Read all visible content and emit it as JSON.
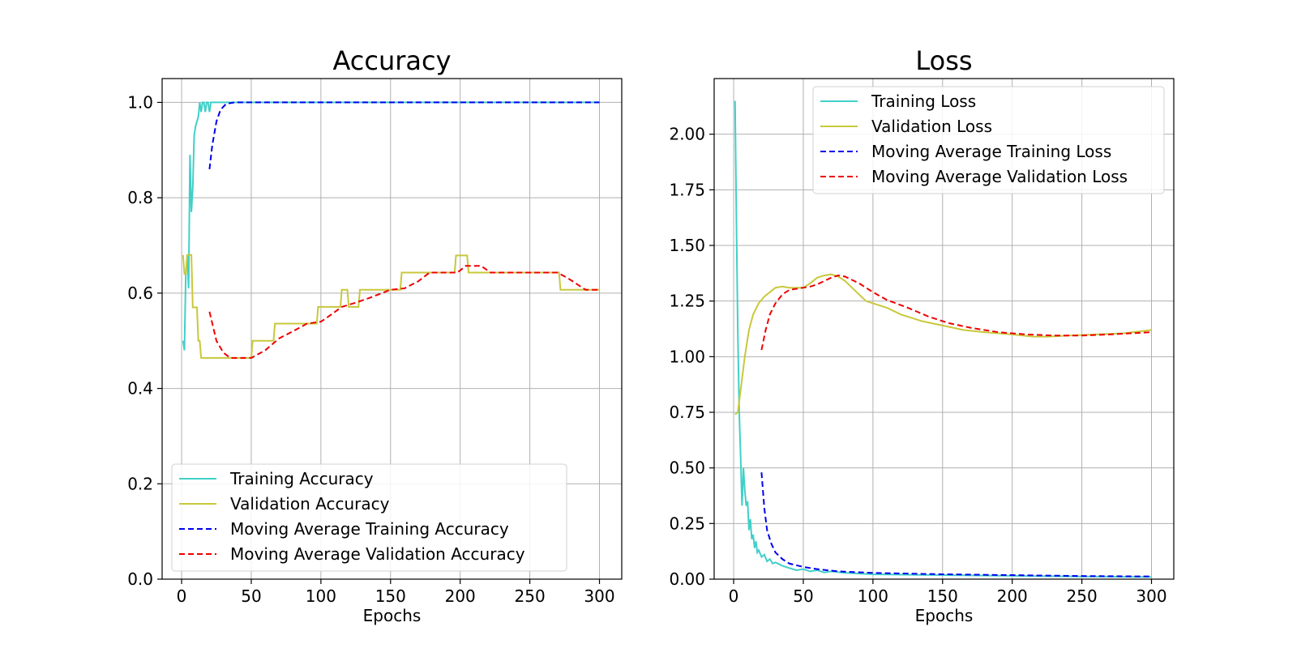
{
  "chart_data": [
    {
      "type": "line",
      "title": "Accuracy",
      "xlabel": "Epochs",
      "ylabel": "",
      "xlim": [
        -14,
        316
      ],
      "ylim": [
        0.0,
        1.05
      ],
      "xticks": [
        "0",
        "50",
        "100",
        "150",
        "200",
        "250",
        "300"
      ],
      "yticks": [
        "0.0",
        "0.2",
        "0.4",
        "0.6",
        "0.8",
        "1.0"
      ],
      "grid": true,
      "legend_position": "lower-left",
      "series": [
        {
          "name": "Training Accuracy",
          "color": "#40d0c8",
          "style": "solid",
          "points": [
            [
              1,
              0.5
            ],
            [
              2,
              0.48
            ],
            [
              3,
              0.64
            ],
            [
              4,
              0.68
            ],
            [
              5,
              0.61
            ],
            [
              6,
              0.89
            ],
            [
              7,
              0.77
            ],
            [
              8,
              0.82
            ],
            [
              9,
              0.93
            ],
            [
              10,
              0.95
            ],
            [
              12,
              0.97
            ],
            [
              13,
              1.0
            ],
            [
              14,
              0.98
            ],
            [
              15,
              1.0
            ],
            [
              16,
              1.0
            ],
            [
              17,
              0.98
            ],
            [
              18,
              1.0
            ],
            [
              19,
              1.0
            ],
            [
              20,
              0.98
            ],
            [
              21,
              1.0
            ],
            [
              300,
              1.0
            ]
          ]
        },
        {
          "name": "Validation Accuracy",
          "color": "#c8c83c",
          "style": "solid",
          "points": [
            [
              1,
              0.68
            ],
            [
              2,
              0.64
            ],
            [
              3,
              0.64
            ],
            [
              4,
              0.68
            ],
            [
              7,
              0.68
            ],
            [
              8,
              0.57
            ],
            [
              11,
              0.57
            ],
            [
              12,
              0.5
            ],
            [
              13,
              0.5
            ],
            [
              14,
              0.464
            ],
            [
              50,
              0.464
            ],
            [
              51,
              0.5
            ],
            [
              66,
              0.5
            ],
            [
              67,
              0.536
            ],
            [
              97,
              0.536
            ],
            [
              98,
              0.571
            ],
            [
              114,
              0.571
            ],
            [
              115,
              0.607
            ],
            [
              119,
              0.607
            ],
            [
              120,
              0.571
            ],
            [
              127,
              0.571
            ],
            [
              128,
              0.607
            ],
            [
              157,
              0.607
            ],
            [
              158,
              0.643
            ],
            [
              196,
              0.643
            ],
            [
              197,
              0.679
            ],
            [
              205,
              0.679
            ],
            [
              206,
              0.643
            ],
            [
              271,
              0.643
            ],
            [
              272,
              0.607
            ],
            [
              300,
              0.607
            ]
          ]
        },
        {
          "name": "Moving Average Training Accuracy",
          "color": "#0000ee",
          "style": "dashed",
          "points": [
            [
              20,
              0.86
            ],
            [
              22,
              0.91
            ],
            [
              25,
              0.96
            ],
            [
              28,
              0.985
            ],
            [
              32,
              0.997
            ],
            [
              38,
              1.0
            ],
            [
              300,
              1.0
            ]
          ]
        },
        {
          "name": "Moving Average Validation Accuracy",
          "color": "#ee0000",
          "style": "dashed",
          "points": [
            [
              20,
              0.561
            ],
            [
              25,
              0.5
            ],
            [
              30,
              0.475
            ],
            [
              35,
              0.464
            ],
            [
              50,
              0.464
            ],
            [
              60,
              0.48
            ],
            [
              70,
              0.505
            ],
            [
              80,
              0.52
            ],
            [
              90,
              0.536
            ],
            [
              100,
              0.54
            ],
            [
              105,
              0.55
            ],
            [
              115,
              0.571
            ],
            [
              125,
              0.58
            ],
            [
              135,
              0.59
            ],
            [
              150,
              0.607
            ],
            [
              160,
              0.61
            ],
            [
              170,
              0.625
            ],
            [
              178,
              0.643
            ],
            [
              198,
              0.643
            ],
            [
              204,
              0.657
            ],
            [
              215,
              0.657
            ],
            [
              222,
              0.643
            ],
            [
              270,
              0.643
            ],
            [
              278,
              0.63
            ],
            [
              290,
              0.607
            ],
            [
              300,
              0.607
            ]
          ]
        }
      ]
    },
    {
      "type": "line",
      "title": "Loss",
      "xlabel": "Epochs",
      "ylabel": "",
      "xlim": [
        -14,
        316
      ],
      "ylim": [
        0.0,
        2.25
      ],
      "xticks": [
        "0",
        "50",
        "100",
        "150",
        "200",
        "250",
        "300"
      ],
      "yticks": [
        "0.00",
        "0.25",
        "0.50",
        "0.75",
        "1.00",
        "1.25",
        "1.50",
        "1.75",
        "2.00"
      ],
      "grid": true,
      "legend_position": "upper-right",
      "series": [
        {
          "name": "Training Loss",
          "color": "#40d0c8",
          "style": "solid",
          "points": [
            [
              1,
              2.15
            ],
            [
              2,
              1.6
            ],
            [
              3,
              1.1
            ],
            [
              4,
              0.75
            ],
            [
              5,
              0.55
            ],
            [
              6,
              0.33
            ],
            [
              7,
              0.5
            ],
            [
              8,
              0.4
            ],
            [
              9,
              0.33
            ],
            [
              10,
              0.35
            ],
            [
              11,
              0.22
            ],
            [
              12,
              0.27
            ],
            [
              13,
              0.18
            ],
            [
              14,
              0.2
            ],
            [
              15,
              0.14
            ],
            [
              16,
              0.17
            ],
            [
              17,
              0.12
            ],
            [
              18,
              0.13
            ],
            [
              20,
              0.1
            ],
            [
              22,
              0.11
            ],
            [
              24,
              0.08
            ],
            [
              26,
              0.09
            ],
            [
              28,
              0.07
            ],
            [
              30,
              0.075
            ],
            [
              35,
              0.06
            ],
            [
              40,
              0.05
            ],
            [
              45,
              0.04
            ],
            [
              50,
              0.045
            ],
            [
              55,
              0.035
            ],
            [
              60,
              0.04
            ],
            [
              65,
              0.03
            ],
            [
              70,
              0.035
            ],
            [
              80,
              0.028
            ],
            [
              90,
              0.025
            ],
            [
              100,
              0.022
            ],
            [
              150,
              0.018
            ],
            [
              200,
              0.015
            ],
            [
              250,
              0.012
            ],
            [
              300,
              0.01
            ]
          ]
        },
        {
          "name": "Validation Loss",
          "color": "#c8c83c",
          "style": "solid",
          "points": [
            [
              1,
              0.74
            ],
            [
              3,
              0.75
            ],
            [
              5,
              0.85
            ],
            [
              8,
              1.0
            ],
            [
              11,
              1.12
            ],
            [
              14,
              1.19
            ],
            [
              18,
              1.24
            ],
            [
              22,
              1.27
            ],
            [
              26,
              1.29
            ],
            [
              30,
              1.31
            ],
            [
              35,
              1.315
            ],
            [
              40,
              1.31
            ],
            [
              45,
              1.31
            ],
            [
              50,
              1.31
            ],
            [
              55,
              1.33
            ],
            [
              60,
              1.355
            ],
            [
              65,
              1.365
            ],
            [
              70,
              1.37
            ],
            [
              75,
              1.36
            ],
            [
              80,
              1.34
            ],
            [
              85,
              1.31
            ],
            [
              90,
              1.28
            ],
            [
              95,
              1.25
            ],
            [
              100,
              1.24
            ],
            [
              110,
              1.22
            ],
            [
              120,
              1.19
            ],
            [
              135,
              1.16
            ],
            [
              150,
              1.14
            ],
            [
              165,
              1.12
            ],
            [
              180,
              1.11
            ],
            [
              200,
              1.1
            ],
            [
              215,
              1.09
            ],
            [
              225,
              1.09
            ],
            [
              240,
              1.095
            ],
            [
              260,
              1.1
            ],
            [
              280,
              1.105
            ],
            [
              300,
              1.12
            ]
          ]
        },
        {
          "name": "Moving Average Training Loss",
          "color": "#0000ee",
          "style": "dashed",
          "points": [
            [
              20,
              0.48
            ],
            [
              22,
              0.32
            ],
            [
              24,
              0.22
            ],
            [
              27,
              0.16
            ],
            [
              30,
              0.12
            ],
            [
              35,
              0.09
            ],
            [
              40,
              0.07
            ],
            [
              50,
              0.055
            ],
            [
              60,
              0.045
            ],
            [
              75,
              0.035
            ],
            [
              100,
              0.028
            ],
            [
              150,
              0.022
            ],
            [
              200,
              0.018
            ],
            [
              250,
              0.014
            ],
            [
              300,
              0.012
            ]
          ]
        },
        {
          "name": "Moving Average Validation Loss",
          "color": "#ee0000",
          "style": "dashed",
          "points": [
            [
              20,
              1.03
            ],
            [
              23,
              1.12
            ],
            [
              26,
              1.19
            ],
            [
              30,
              1.24
            ],
            [
              35,
              1.28
            ],
            [
              40,
              1.3
            ],
            [
              45,
              1.305
            ],
            [
              50,
              1.31
            ],
            [
              55,
              1.315
            ],
            [
              60,
              1.325
            ],
            [
              65,
              1.34
            ],
            [
              70,
              1.355
            ],
            [
              75,
              1.365
            ],
            [
              80,
              1.36
            ],
            [
              90,
              1.33
            ],
            [
              100,
              1.29
            ],
            [
              110,
              1.255
            ],
            [
              125,
              1.22
            ],
            [
              140,
              1.18
            ],
            [
              155,
              1.15
            ],
            [
              170,
              1.13
            ],
            [
              190,
              1.11
            ],
            [
              210,
              1.1
            ],
            [
              230,
              1.095
            ],
            [
              250,
              1.095
            ],
            [
              270,
              1.1
            ],
            [
              300,
              1.11
            ]
          ]
        }
      ]
    }
  ]
}
